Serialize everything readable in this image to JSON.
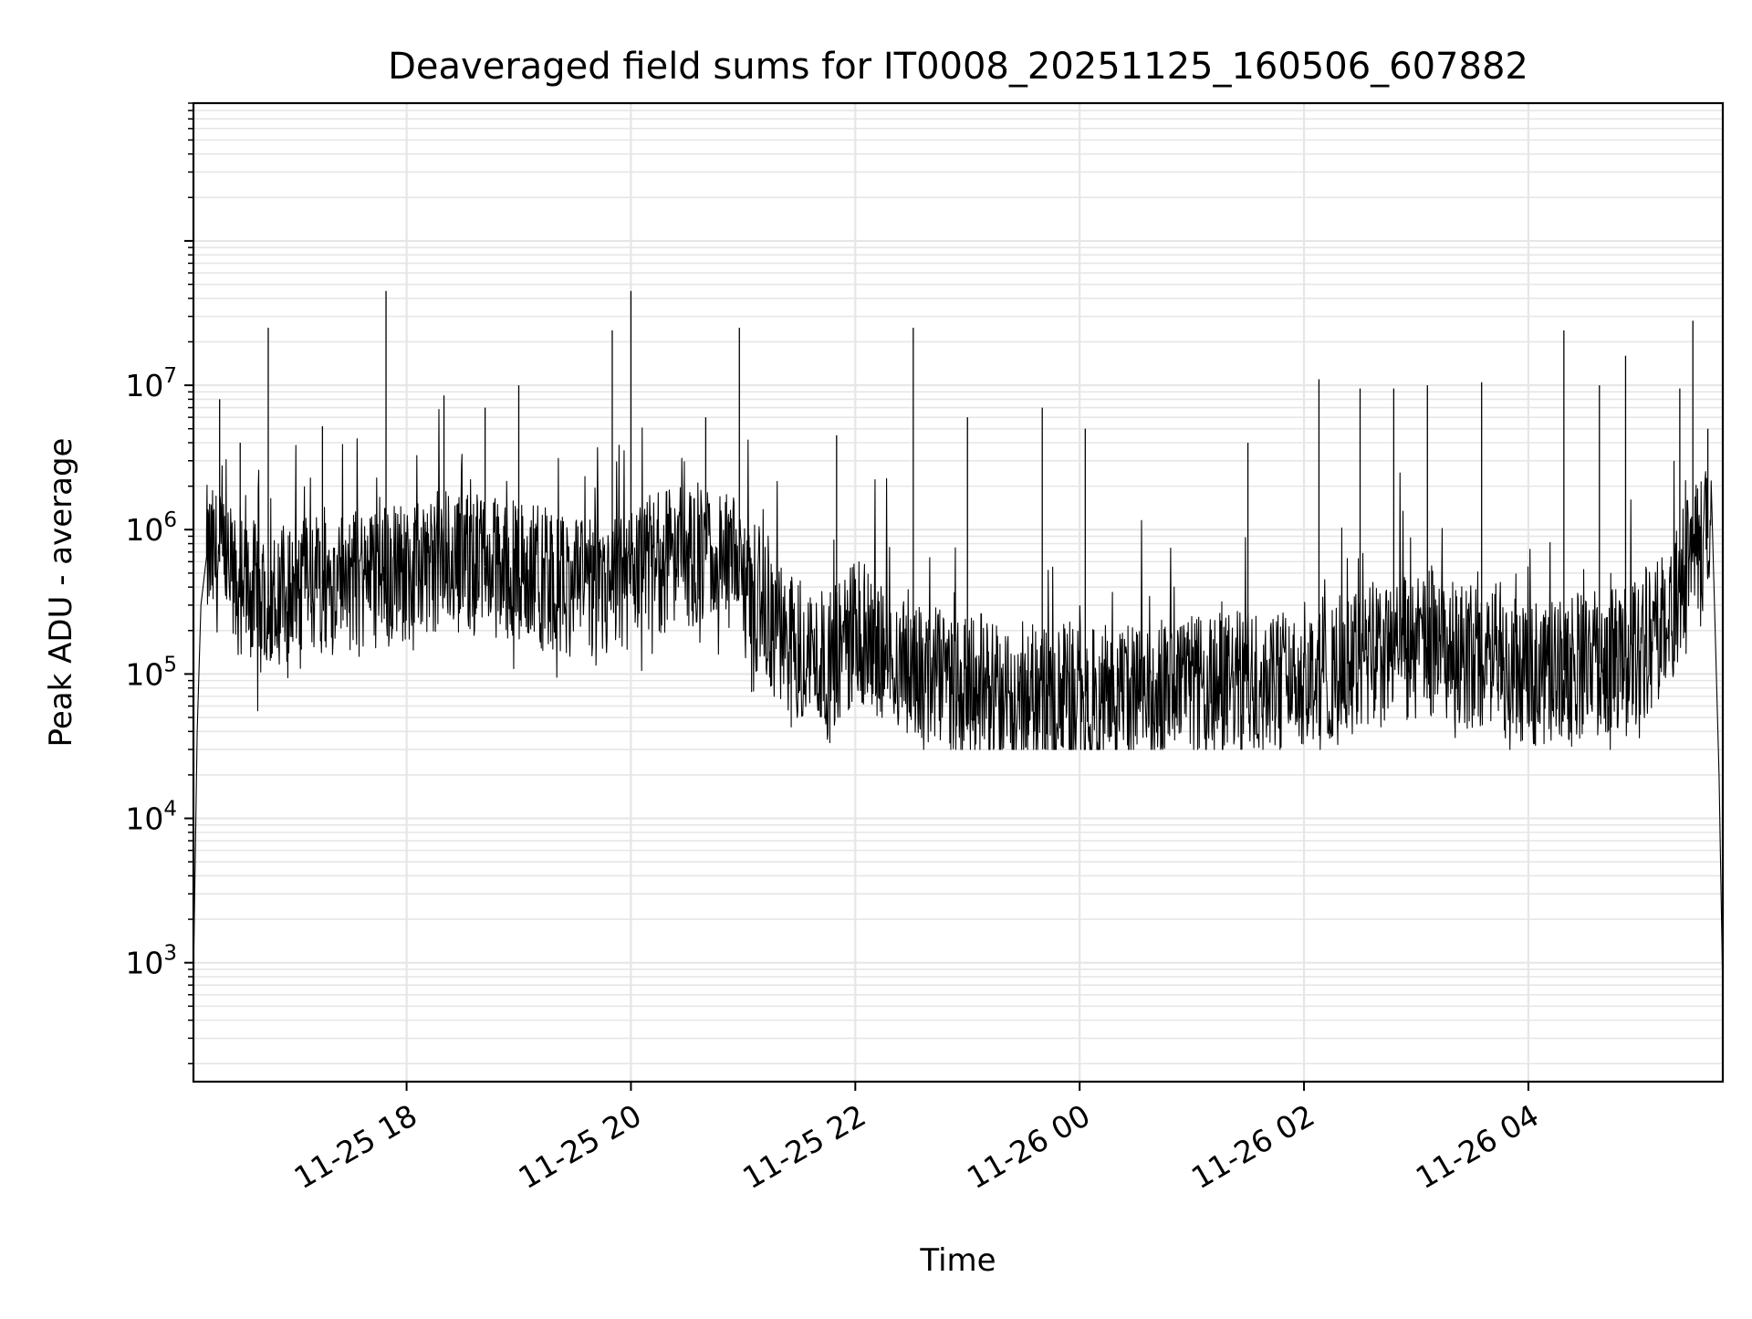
{
  "chart_data": {
    "type": "line",
    "title": "Deaveraged field sums for IT0008_20251125_160506_607882",
    "xlabel": "Time",
    "ylabel": "Peak ADU - average",
    "yscale": "log",
    "xlim": [
      "2025-11-25 16:06",
      "2025-11-26 05:44"
    ],
    "ylim": [
      150,
      900000000
    ],
    "grid": true,
    "line_color": "#000000",
    "grid_color": "#e6e6e6",
    "x_ticks": [
      {
        "value": "2025-11-25 18:00",
        "label": "11-25 18"
      },
      {
        "value": "2025-11-25 20:00",
        "label": "11-25 20"
      },
      {
        "value": "2025-11-25 22:00",
        "label": "11-25 22"
      },
      {
        "value": "2025-11-26 00:00",
        "label": "11-26 00"
      },
      {
        "value": "2025-11-26 02:00",
        "label": "11-26 02"
      },
      {
        "value": "2025-11-26 04:00",
        "label": "11-26 04"
      }
    ],
    "y_ticks": [
      {
        "value": 1000,
        "base": "10",
        "exp": "3"
      },
      {
        "value": 10000,
        "base": "10",
        "exp": "4"
      },
      {
        "value": 100000,
        "base": "10",
        "exp": "5"
      },
      {
        "value": 1000000,
        "base": "10",
        "exp": "6"
      },
      {
        "value": 10000000,
        "base": "10",
        "exp": "7"
      }
    ],
    "series": [
      {
        "x": [
          "2025-11-25 16:06",
          "2025-11-25 16:08",
          "2025-11-25 16:10",
          "2025-11-25 16:13",
          "2025-11-25 16:20",
          "2025-11-25 16:30",
          "2025-11-25 16:45",
          "2025-11-25 17:00",
          "2025-11-25 17:15",
          "2025-11-25 17:30",
          "2025-11-25 17:45",
          "2025-11-25 18:00",
          "2025-11-25 18:15",
          "2025-11-25 18:30",
          "2025-11-25 18:45",
          "2025-11-25 19:00",
          "2025-11-25 19:15",
          "2025-11-25 19:30",
          "2025-11-25 19:45",
          "2025-11-25 20:00",
          "2025-11-25 20:15",
          "2025-11-25 20:30",
          "2025-11-25 20:45",
          "2025-11-25 21:00",
          "2025-11-25 21:15",
          "2025-11-25 21:30",
          "2025-11-25 21:45",
          "2025-11-25 22:00",
          "2025-11-25 22:15",
          "2025-11-25 22:30",
          "2025-11-25 22:45",
          "2025-11-25 23:00",
          "2025-11-25 23:15",
          "2025-11-25 23:30",
          "2025-11-25 23:45",
          "2025-11-26 00:00",
          "2025-11-26 00:30",
          "2025-11-26 01:00",
          "2025-11-26 01:30",
          "2025-11-26 02:00",
          "2025-11-26 02:30",
          "2025-11-26 03:00",
          "2025-11-26 03:30",
          "2025-11-26 04:00",
          "2025-11-26 04:30",
          "2025-11-26 05:00",
          "2025-11-26 05:15",
          "2025-11-26 05:30",
          "2025-11-26 05:38",
          "2025-11-26 05:42",
          "2025-11-26 05:44"
        ],
        "y": [
          800,
          40000,
          300000,
          650000,
          600000,
          400000,
          350000,
          380000,
          420000,
          450000,
          480000,
          500000,
          600000,
          600000,
          550000,
          520000,
          450000,
          400000,
          350000,
          450000,
          600000,
          650000,
          600000,
          500000,
          200000,
          150000,
          120000,
          200000,
          150000,
          100000,
          90000,
          80000,
          75000,
          70000,
          70000,
          70000,
          70000,
          80000,
          90000,
          100000,
          120000,
          150000,
          130000,
          100000,
          110000,
          140000,
          250000,
          800000,
          900000,
          20000,
          600
        ],
        "line_color": "#000000"
      }
    ],
    "spikes": [
      {
        "x": "2025-11-25 16:20",
        "y": 8000000
      },
      {
        "x": "2025-11-25 16:31",
        "y": 4000000
      },
      {
        "x": "2025-11-25 16:46",
        "y": 25000000
      },
      {
        "x": "2025-11-25 17:15",
        "y": 5200000
      },
      {
        "x": "2025-11-25 17:49",
        "y": 45000000
      },
      {
        "x": "2025-11-25 18:20",
        "y": 8500000
      },
      {
        "x": "2025-11-25 18:42",
        "y": 7000000
      },
      {
        "x": "2025-11-25 19:00",
        "y": 10000000
      },
      {
        "x": "2025-11-25 19:50",
        "y": 24000000
      },
      {
        "x": "2025-11-25 20:00",
        "y": 45000000
      },
      {
        "x": "2025-11-25 20:40",
        "y": 6000000
      },
      {
        "x": "2025-11-25 20:58",
        "y": 25000000
      },
      {
        "x": "2025-11-25 21:50",
        "y": 4500000
      },
      {
        "x": "2025-11-25 22:31",
        "y": 25000000
      },
      {
        "x": "2025-11-25 23:00",
        "y": 6000000
      },
      {
        "x": "2025-11-25 23:40",
        "y": 7000000
      },
      {
        "x": "2025-11-26 00:03",
        "y": 5000000
      },
      {
        "x": "2025-11-26 01:30",
        "y": 4000000
      },
      {
        "x": "2025-11-26 02:08",
        "y": 11000000
      },
      {
        "x": "2025-11-26 02:30",
        "y": 9500000
      },
      {
        "x": "2025-11-26 02:48",
        "y": 9500000
      },
      {
        "x": "2025-11-26 03:06",
        "y": 10000000
      },
      {
        "x": "2025-11-26 03:35",
        "y": 10500000
      },
      {
        "x": "2025-11-26 04:19",
        "y": 24000000
      },
      {
        "x": "2025-11-26 04:38",
        "y": 10000000
      },
      {
        "x": "2025-11-26 04:52",
        "y": 16000000
      },
      {
        "x": "2025-11-26 05:21",
        "y": 9500000
      },
      {
        "x": "2025-11-26 05:28",
        "y": 28000000
      },
      {
        "x": "2025-11-26 05:36",
        "y": 5000000
      }
    ]
  }
}
